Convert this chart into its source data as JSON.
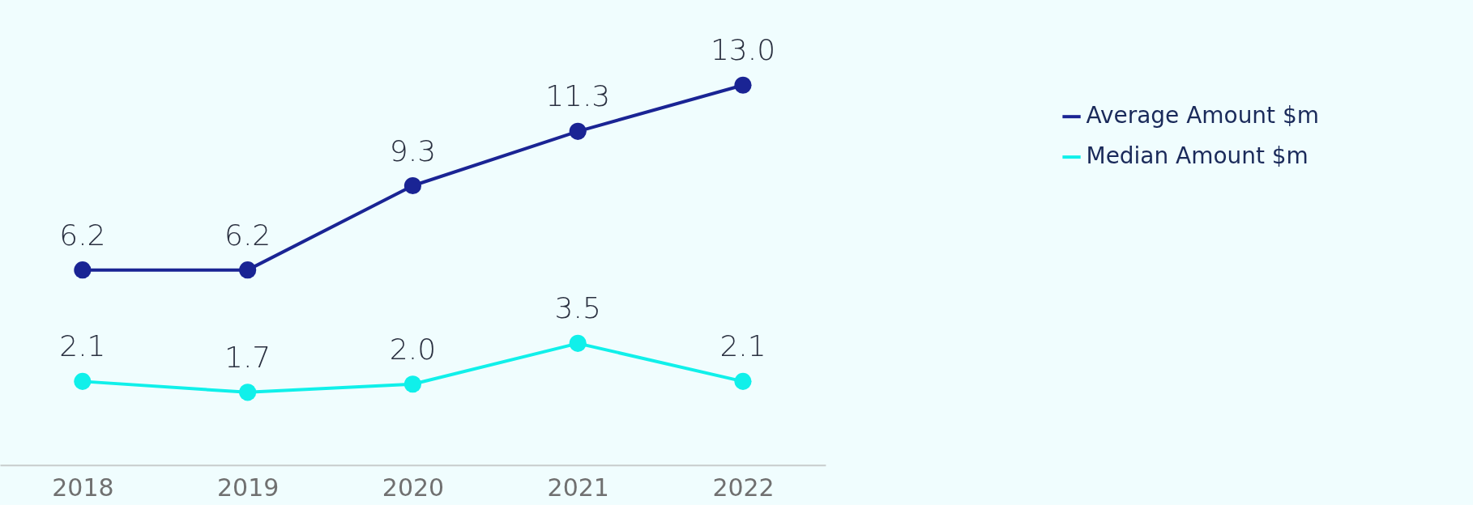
{
  "chart_data": {
    "type": "line",
    "categories": [
      "2018",
      "2019",
      "2020",
      "2021",
      "2022"
    ],
    "series": [
      {
        "name": "Average Amount $m",
        "color": "#1a2494",
        "values": [
          6.2,
          6.2,
          9.3,
          11.3,
          13.0
        ],
        "value_labels": [
          "6.2",
          "6.2",
          "9.3",
          "11.3",
          "13.0"
        ]
      },
      {
        "name": "Median Amount $m",
        "color": "#10f0ea",
        "values": [
          2.1,
          1.7,
          2.0,
          3.5,
          2.1
        ],
        "value_labels": [
          "2.1",
          "1.7",
          "2.0",
          "3.5",
          "2.1"
        ]
      }
    ],
    "marker": "circle",
    "line_style": "solid",
    "grid": false,
    "legend": "top right",
    "tick_labels": "x"
  }
}
